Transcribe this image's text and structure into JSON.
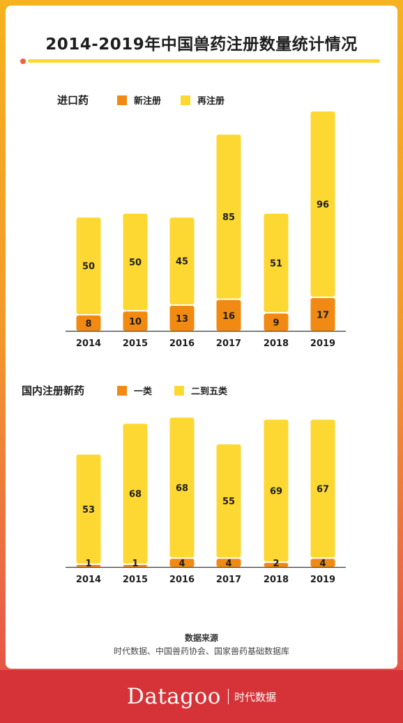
{
  "title": "2014-2019年中国兽药注册数量统计情况",
  "colors": {
    "orange": "#f08a12",
    "yellow": "#fdd832",
    "red": "#d63338",
    "dot": "#f2613d"
  },
  "chart_data": [
    {
      "type": "bar",
      "stacked": true,
      "panel_label": "进口药",
      "categories": [
        "2014",
        "2015",
        "2016",
        "2017",
        "2018",
        "2019"
      ],
      "series": [
        {
          "name": "新注册",
          "color": "#f08a12",
          "values": [
            8,
            10,
            13,
            16,
            9,
            17
          ]
        },
        {
          "name": "再注册",
          "color": "#fdd832",
          "values": [
            50,
            50,
            45,
            85,
            51,
            96
          ]
        }
      ],
      "legend_position": "top"
    },
    {
      "type": "bar",
      "stacked": true,
      "panel_label": "国内注册新药",
      "categories": [
        "2014",
        "2015",
        "2016",
        "2017",
        "2018",
        "2019"
      ],
      "series": [
        {
          "name": "一类",
          "color": "#f08a12",
          "values": [
            1,
            1,
            4,
            4,
            2,
            4
          ]
        },
        {
          "name": "二到五类",
          "color": "#fdd832",
          "values": [
            53,
            68,
            68,
            55,
            69,
            67
          ]
        }
      ],
      "legend_position": "top"
    }
  ],
  "source": {
    "title": "数据来源",
    "text": "时代数据、中国兽药协会、国家兽药基础数据库"
  },
  "brand": {
    "name": "Datagoo",
    "cn": "时代数据"
  }
}
